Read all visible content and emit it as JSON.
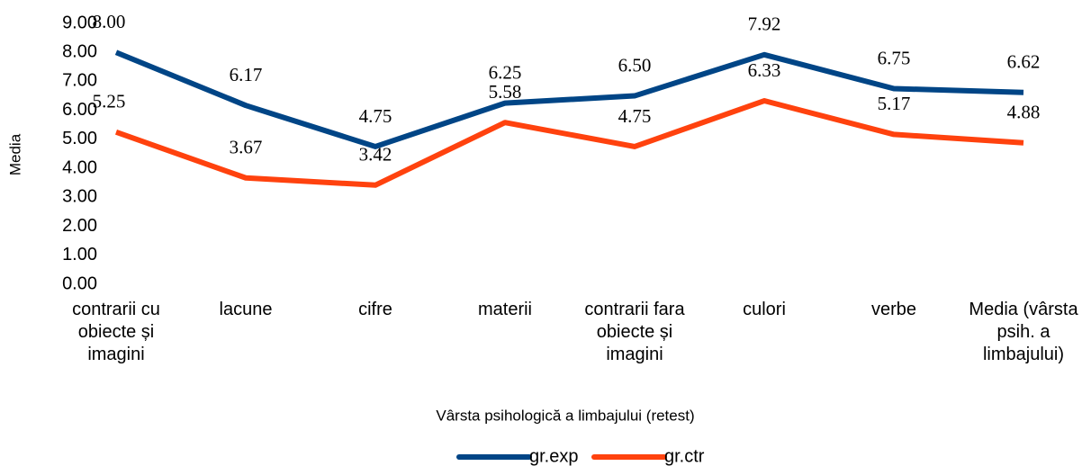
{
  "chart_data": {
    "type": "line",
    "x_label": "Vârsta psihologică a limbajului (retest)",
    "y_label": "Media",
    "categories": [
      "contrarii cu obiecte și imagini",
      "lacune",
      "cifre",
      "materii",
      "contrarii fara obiecte și imagini",
      "culori",
      "verbe",
      "Media (vârsta psih. a limbajului)"
    ],
    "series": [
      {
        "name": "gr.exp",
        "color": "#004586",
        "values": [
          8.0,
          6.17,
          4.75,
          6.25,
          6.5,
          7.92,
          6.75,
          6.62
        ],
        "value_labels": [
          "8.00",
          "6.17",
          "4.75",
          "6.25",
          "6.50",
          "7.92",
          "6.75",
          "6.62"
        ]
      },
      {
        "name": "gr.ctr",
        "color": "#ff420e",
        "values": [
          5.25,
          3.67,
          3.42,
          5.58,
          4.75,
          6.33,
          5.17,
          4.88
        ],
        "value_labels": [
          "5.25",
          "3.67",
          "3.42",
          "5.58",
          "4.75",
          "6.33",
          "5.17",
          "4.88"
        ]
      }
    ],
    "ylim": [
      0,
      9
    ],
    "yticks": [
      {
        "value": 0,
        "label": "0.00"
      },
      {
        "value": 1,
        "label": "1.00"
      },
      {
        "value": 2,
        "label": "2.00"
      },
      {
        "value": 3,
        "label": "3.00"
      },
      {
        "value": 4,
        "label": "4.00"
      },
      {
        "value": 5,
        "label": "5.00"
      },
      {
        "value": 6,
        "label": "6.00"
      },
      {
        "value": 7,
        "label": "7.00"
      },
      {
        "value": 8,
        "label": "8.00"
      },
      {
        "value": 9,
        "label": "9.00"
      }
    ],
    "grid": false,
    "legend": "bottom"
  }
}
